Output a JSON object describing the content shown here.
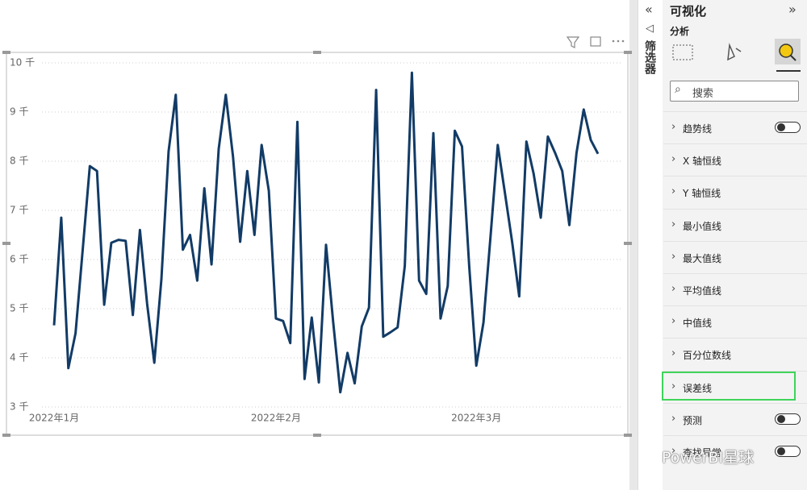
{
  "chart_data": {
    "type": "line",
    "categories": [
      "2022年1月",
      null,
      null,
      null,
      null,
      null,
      null,
      null,
      null,
      null,
      null,
      null,
      null,
      null,
      null,
      null,
      null,
      null,
      null,
      null,
      null,
      null,
      null,
      null,
      null,
      null,
      null,
      null,
      null,
      null,
      null,
      "2022年2月",
      null,
      null,
      null,
      null,
      null,
      null,
      null,
      null,
      null,
      null,
      null,
      null,
      null,
      null,
      null,
      null,
      null,
      null,
      null,
      null,
      null,
      null,
      null,
      null,
      null,
      null,
      null,
      "2022年3月",
      null,
      null,
      null,
      null,
      null,
      null,
      null,
      null,
      null,
      null,
      null,
      null,
      null,
      null,
      null,
      null,
      null
    ],
    "values": [
      4660,
      6850,
      3790,
      4500,
      6200,
      7900,
      7800,
      5080,
      6340,
      6400,
      6380,
      4870,
      6600,
      5100,
      3900,
      5600,
      8200,
      9350,
      6200,
      6500,
      5570,
      7450,
      5900,
      8250,
      9350,
      8100,
      6360,
      7800,
      6500,
      8330,
      7400,
      4800,
      4750,
      4300,
      8800,
      3570,
      4820,
      3500,
      6300,
      4720,
      3300,
      4100,
      3480,
      4640,
      5020,
      9450,
      4430,
      4520,
      4620,
      5870,
      9800,
      5570,
      5300,
      8570,
      4800,
      5460,
      8620,
      8300,
      5870,
      3840,
      4720,
      6500,
      8330,
      7350,
      6360,
      5250,
      8400,
      7750,
      6850,
      8500,
      8170,
      7800,
      6700,
      8170,
      9050,
      8430,
      8150
    ],
    "color": "#123b66",
    "ylim": [
      3000,
      10000
    ],
    "yticks": [
      {
        "value": 3000,
        "label": "3 千"
      },
      {
        "value": 4000,
        "label": "4 千"
      },
      {
        "value": 5000,
        "label": "5 千"
      },
      {
        "value": 6000,
        "label": "6 千"
      },
      {
        "value": 7000,
        "label": "7 千"
      },
      {
        "value": 8000,
        "label": "8 千"
      },
      {
        "value": 9000,
        "label": "9 千"
      },
      {
        "value": 10000,
        "label": "10 千"
      }
    ],
    "grid": true
  },
  "filters_pane": {
    "title": "筛选器"
  },
  "visualizations_pane": {
    "title": "可视化",
    "tab": "分析",
    "search_placeholder": "搜索",
    "items": [
      {
        "label": "趋势线",
        "toggle": false
      },
      {
        "label": "X 轴恒线"
      },
      {
        "label": "Y 轴恒线"
      },
      {
        "label": "最小值线"
      },
      {
        "label": "最大值线"
      },
      {
        "label": "平均值线"
      },
      {
        "label": "中值线"
      },
      {
        "label": "百分位数线"
      },
      {
        "label": "误差线",
        "highlighted": true
      },
      {
        "label": "预测",
        "toggle": false
      },
      {
        "label": "查找异常",
        "toggle": false
      }
    ]
  },
  "watermark": "PowerBI星球"
}
